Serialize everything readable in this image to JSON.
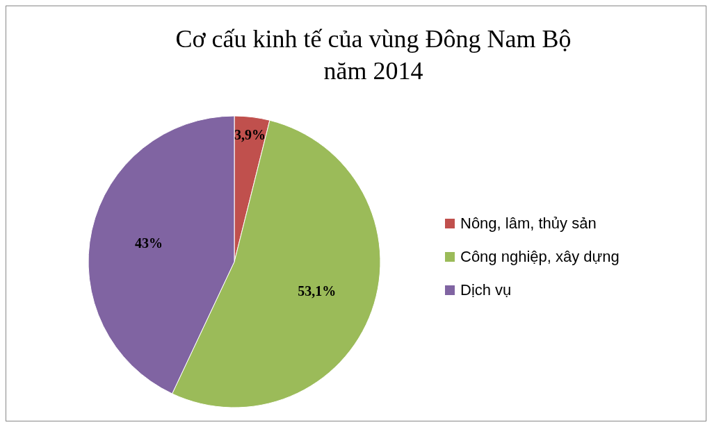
{
  "chart_data": {
    "type": "pie",
    "title": "Cơ cấu kinh tế của vùng Đông Nam Bộ\nnăm 2014",
    "categories": [
      "Nông, lâm, thủy sản",
      "Công nghiệp, xây dựng",
      "Dịch vụ"
    ],
    "values": [
      3.9,
      53.1,
      43
    ],
    "colors": [
      "#c0504d",
      "#9bbb59",
      "#8064a2"
    ],
    "value_labels": [
      "3,9%",
      "53,1%",
      "43%"
    ],
    "legend": "right"
  }
}
